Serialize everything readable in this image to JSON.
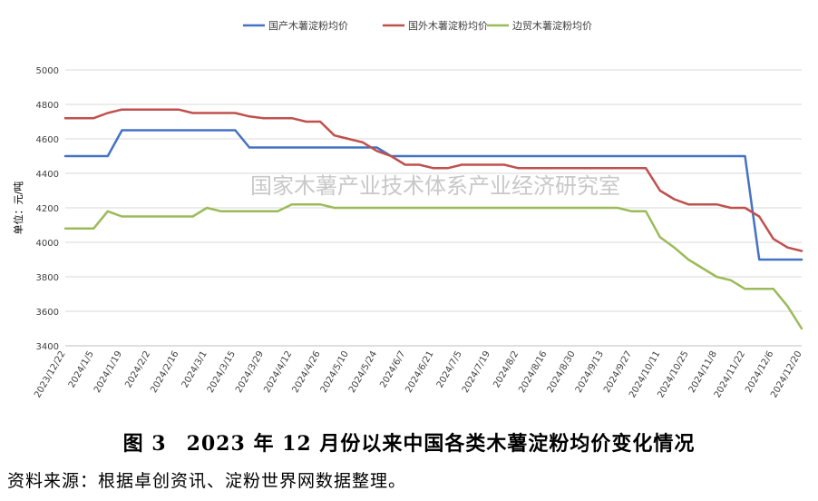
{
  "chart_data": {
    "type": "line",
    "ylabel": "单位：元/吨",
    "ylim": [
      3400,
      5000
    ],
    "yticks": [
      3400,
      3600,
      3800,
      4000,
      4200,
      4400,
      4600,
      4800,
      5000
    ],
    "x_ticks": [
      "2023/12/22",
      "2024/1/5",
      "2024/1/19",
      "2024/2/2",
      "2024/2/16",
      "2024/3/1",
      "2024/3/15",
      "2024/3/29",
      "2024/4/12",
      "2024/4/26",
      "2024/5/10",
      "2024/5/24",
      "2024/6/7",
      "2024/6/21",
      "2024/7/5",
      "2024/7/19",
      "2024/8/2",
      "2024/8/16",
      "2024/8/30",
      "2024/9/13",
      "2024/9/27",
      "2024/10/11",
      "2024/10/25",
      "2024/11/8",
      "2024/11/22",
      "2024/12/6",
      "2024/12/20"
    ],
    "grid": true,
    "legend_position": "top",
    "watermark": "国家木薯产业技术体系产业经济研究室",
    "series": [
      {
        "name": "国产木薯淀粉均价",
        "color": "#4472c4",
        "points": [
          [
            "2023/12/22",
            4500
          ],
          [
            "2023/12/29",
            4500
          ],
          [
            "2024/1/5",
            4500
          ],
          [
            "2024/1/12",
            4500
          ],
          [
            "2024/1/19",
            4650
          ],
          [
            "2024/1/26",
            4650
          ],
          [
            "2024/2/2",
            4650
          ],
          [
            "2024/2/9",
            4650
          ],
          [
            "2024/2/16",
            4650
          ],
          [
            "2024/2/23",
            4650
          ],
          [
            "2024/3/1",
            4650
          ],
          [
            "2024/3/8",
            4650
          ],
          [
            "2024/3/15",
            4650
          ],
          [
            "2024/3/22",
            4550
          ],
          [
            "2024/3/29",
            4550
          ],
          [
            "2024/4/5",
            4550
          ],
          [
            "2024/4/12",
            4550
          ],
          [
            "2024/4/19",
            4550
          ],
          [
            "2024/4/26",
            4550
          ],
          [
            "2024/5/3",
            4550
          ],
          [
            "2024/5/10",
            4550
          ],
          [
            "2024/5/17",
            4550
          ],
          [
            "2024/5/24",
            4550
          ],
          [
            "2024/5/31",
            4500
          ],
          [
            "2024/6/7",
            4500
          ],
          [
            "2024/11/22",
            4500
          ],
          [
            "2024/11/29",
            3900
          ],
          [
            "2024/12/6",
            3900
          ],
          [
            "2024/12/13",
            3900
          ],
          [
            "2024/12/20",
            3900
          ]
        ]
      },
      {
        "name": "国外木薯淀粉均价",
        "color": "#c0504d",
        "points": [
          [
            "2023/12/22",
            4720
          ],
          [
            "2023/12/29",
            4720
          ],
          [
            "2024/1/5",
            4720
          ],
          [
            "2024/1/12",
            4750
          ],
          [
            "2024/1/19",
            4770
          ],
          [
            "2024/1/26",
            4770
          ],
          [
            "2024/2/2",
            4770
          ],
          [
            "2024/2/9",
            4770
          ],
          [
            "2024/2/16",
            4770
          ],
          [
            "2024/2/23",
            4750
          ],
          [
            "2024/3/1",
            4750
          ],
          [
            "2024/3/8",
            4750
          ],
          [
            "2024/3/15",
            4750
          ],
          [
            "2024/3/22",
            4730
          ],
          [
            "2024/3/29",
            4720
          ],
          [
            "2024/4/5",
            4720
          ],
          [
            "2024/4/12",
            4720
          ],
          [
            "2024/4/19",
            4700
          ],
          [
            "2024/4/26",
            4700
          ],
          [
            "2024/5/3",
            4620
          ],
          [
            "2024/5/10",
            4600
          ],
          [
            "2024/5/17",
            4580
          ],
          [
            "2024/5/24",
            4530
          ],
          [
            "2024/5/31",
            4500
          ],
          [
            "2024/6/7",
            4450
          ],
          [
            "2024/6/14",
            4450
          ],
          [
            "2024/6/21",
            4430
          ],
          [
            "2024/6/28",
            4430
          ],
          [
            "2024/7/5",
            4450
          ],
          [
            "2024/7/12",
            4450
          ],
          [
            "2024/7/19",
            4450
          ],
          [
            "2024/7/26",
            4450
          ],
          [
            "2024/8/2",
            4430
          ],
          [
            "2024/8/9",
            4430
          ],
          [
            "2024/8/16",
            4430
          ],
          [
            "2024/8/23",
            4430
          ],
          [
            "2024/8/30",
            4430
          ],
          [
            "2024/9/6",
            4430
          ],
          [
            "2024/9/13",
            4430
          ],
          [
            "2024/9/20",
            4430
          ],
          [
            "2024/9/27",
            4430
          ],
          [
            "2024/10/4",
            4430
          ],
          [
            "2024/10/11",
            4300
          ],
          [
            "2024/10/18",
            4250
          ],
          [
            "2024/10/25",
            4220
          ],
          [
            "2024/11/1",
            4220
          ],
          [
            "2024/11/8",
            4220
          ],
          [
            "2024/11/15",
            4200
          ],
          [
            "2024/11/22",
            4200
          ],
          [
            "2024/11/29",
            4150
          ],
          [
            "2024/12/6",
            4020
          ],
          [
            "2024/12/13",
            3970
          ],
          [
            "2024/12/20",
            3950
          ]
        ]
      },
      {
        "name": "边贸木薯淀粉均价",
        "color": "#9bbb59",
        "points": [
          [
            "2023/12/22",
            4080
          ],
          [
            "2023/12/29",
            4080
          ],
          [
            "2024/1/5",
            4080
          ],
          [
            "2024/1/12",
            4180
          ],
          [
            "2024/1/19",
            4150
          ],
          [
            "2024/1/26",
            4150
          ],
          [
            "2024/2/2",
            4150
          ],
          [
            "2024/2/9",
            4150
          ],
          [
            "2024/2/16",
            4150
          ],
          [
            "2024/2/23",
            4150
          ],
          [
            "2024/3/1",
            4200
          ],
          [
            "2024/3/8",
            4180
          ],
          [
            "2024/3/15",
            4180
          ],
          [
            "2024/3/22",
            4180
          ],
          [
            "2024/3/29",
            4180
          ],
          [
            "2024/4/5",
            4180
          ],
          [
            "2024/4/12",
            4220
          ],
          [
            "2024/4/19",
            4220
          ],
          [
            "2024/4/26",
            4220
          ],
          [
            "2024/5/3",
            4200
          ],
          [
            "2024/5/10",
            4200
          ],
          [
            "2024/9/20",
            4200
          ],
          [
            "2024/9/27",
            4180
          ],
          [
            "2024/10/4",
            4180
          ],
          [
            "2024/10/11",
            4030
          ],
          [
            "2024/10/18",
            3970
          ],
          [
            "2024/10/25",
            3900
          ],
          [
            "2024/11/1",
            3850
          ],
          [
            "2024/11/8",
            3800
          ],
          [
            "2024/11/15",
            3780
          ],
          [
            "2024/11/22",
            3730
          ],
          [
            "2024/11/29",
            3730
          ],
          [
            "2024/12/6",
            3730
          ],
          [
            "2024/12/13",
            3630
          ],
          [
            "2024/12/20",
            3500
          ]
        ]
      }
    ]
  },
  "caption": {
    "figure_number": "图 3",
    "title": "2023 年 12 月份以来中国各类木薯淀粉均价变化情况"
  },
  "source": "资料来源：根据卓创资讯、淀粉世界网数据整理。"
}
